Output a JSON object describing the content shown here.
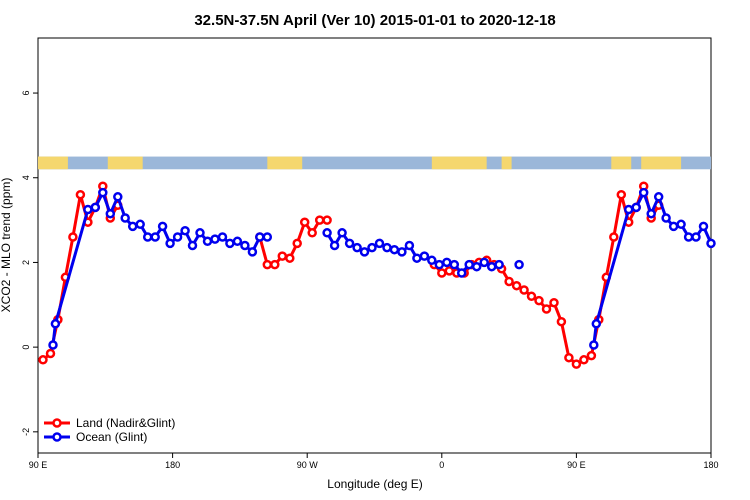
{
  "chart_data": {
    "type": "line",
    "title": "32.5N-37.5N April (Ver 10)   2015-01-01 to 2020-12-18",
    "xlabel": "Longitude (deg E)",
    "ylabel": "XCO2 - MLO trend (ppm)",
    "xlim": [
      0,
      270
    ],
    "ylim": [
      -2.5,
      7.3
    ],
    "x_ticks": [
      {
        "value": 0,
        "label": "90 E"
      },
      {
        "value": 54,
        "label": "180"
      },
      {
        "value": 108,
        "label": "90 W"
      },
      {
        "value": 162,
        "label": "0"
      },
      {
        "value": 216,
        "label": "90 E"
      },
      {
        "value": 270,
        "label": "180"
      }
    ],
    "y_ticks": [
      {
        "value": -2,
        "label": "-2"
      },
      {
        "value": 0,
        "label": "0"
      },
      {
        "value": 2,
        "label": "2"
      },
      {
        "value": 4,
        "label": "4"
      },
      {
        "value": 6,
        "label": "6"
      }
    ],
    "grid": false,
    "legend_position": "bottom-left",
    "land_ocean_strip": {
      "y_range": [
        4.2,
        4.5
      ],
      "land_color": "#f5d76e",
      "ocean_color": "#9bb7d9",
      "land_x_ranges": [
        [
          0,
          12
        ],
        [
          28,
          42
        ],
        [
          92,
          106
        ],
        [
          158,
          180
        ],
        [
          186,
          190
        ],
        [
          230,
          238
        ],
        [
          242,
          258
        ]
      ]
    },
    "series": [
      {
        "name": "Land (Nadir&Glint)",
        "color": "#ff0000",
        "segments": [
          [
            [
              2,
              -0.3
            ],
            [
              5,
              -0.15
            ],
            [
              8,
              0.65
            ],
            [
              11,
              1.65
            ],
            [
              14,
              2.6
            ],
            [
              17,
              3.6
            ],
            [
              20,
              2.95
            ],
            [
              23,
              3.3
            ],
            [
              26,
              3.8
            ],
            [
              29,
              3.05
            ],
            [
              32,
              3.35
            ]
          ],
          [
            [
              89,
              2.6
            ],
            [
              92,
              1.95
            ],
            [
              95,
              1.95
            ],
            [
              98,
              2.15
            ],
            [
              101,
              2.1
            ],
            [
              104,
              2.45
            ],
            [
              107,
              2.95
            ],
            [
              110,
              2.7
            ],
            [
              113,
              3.0
            ],
            [
              116,
              3.0
            ]
          ],
          [
            [
              159,
              1.95
            ],
            [
              162,
              1.75
            ],
            [
              165,
              1.8
            ],
            [
              168,
              1.75
            ],
            [
              171,
              1.75
            ],
            [
              174,
              1.95
            ],
            [
              177,
              2.0
            ],
            [
              180,
              2.05
            ],
            [
              183,
              1.95
            ],
            [
              186,
              1.85
            ],
            [
              189,
              1.55
            ],
            [
              192,
              1.45
            ],
            [
              195,
              1.35
            ],
            [
              198,
              1.2
            ],
            [
              201,
              1.1
            ],
            [
              204,
              0.9
            ],
            [
              207,
              1.05
            ],
            [
              210,
              0.6
            ],
            [
              213,
              -0.25
            ],
            [
              216,
              -0.4
            ],
            [
              219,
              -0.3
            ],
            [
              222,
              -0.2
            ],
            [
              225,
              0.65
            ],
            [
              228,
              1.65
            ],
            [
              231,
              2.6
            ],
            [
              234,
              3.6
            ],
            [
              237,
              2.95
            ],
            [
              240,
              3.3
            ],
            [
              243,
              3.8
            ],
            [
              246,
              3.05
            ],
            [
              249,
              3.35
            ]
          ]
        ]
      },
      {
        "name": "Ocean (Glint)",
        "color": "#0000ee",
        "segments": [
          [
            [
              6,
              0.05
            ],
            [
              7,
              0.55
            ],
            [
              20,
              3.25
            ],
            [
              23,
              3.3
            ],
            [
              26,
              3.65
            ],
            [
              29,
              3.15
            ],
            [
              32,
              3.55
            ],
            [
              35,
              3.05
            ],
            [
              38,
              2.85
            ],
            [
              41,
              2.9
            ],
            [
              44,
              2.6
            ],
            [
              47,
              2.6
            ],
            [
              50,
              2.85
            ],
            [
              53,
              2.45
            ],
            [
              56,
              2.6
            ],
            [
              59,
              2.75
            ],
            [
              62,
              2.4
            ],
            [
              65,
              2.7
            ],
            [
              68,
              2.5
            ],
            [
              71,
              2.55
            ],
            [
              74,
              2.6
            ],
            [
              77,
              2.45
            ],
            [
              80,
              2.5
            ],
            [
              83,
              2.4
            ],
            [
              86,
              2.25
            ],
            [
              89,
              2.6
            ],
            [
              92,
              2.6
            ]
          ],
          [
            [
              116,
              2.7
            ],
            [
              119,
              2.4
            ],
            [
              122,
              2.7
            ],
            [
              125,
              2.45
            ],
            [
              128,
              2.35
            ],
            [
              131,
              2.25
            ],
            [
              134,
              2.35
            ],
            [
              137,
              2.45
            ],
            [
              140,
              2.35
            ],
            [
              143,
              2.3
            ],
            [
              146,
              2.25
            ],
            [
              149,
              2.4
            ],
            [
              152,
              2.1
            ],
            [
              155,
              2.15
            ],
            [
              158,
              2.05
            ],
            [
              161,
              1.95
            ],
            [
              164,
              2.0
            ],
            [
              167,
              1.95
            ],
            [
              170,
              1.75
            ],
            [
              173,
              1.95
            ],
            [
              176,
              1.9
            ],
            [
              179,
              2.0
            ],
            [
              182,
              1.9
            ],
            [
              185,
              1.95
            ]
          ],
          [
            [
              193,
              1.95
            ]
          ],
          [
            [
              223,
              0.05
            ],
            [
              224,
              0.55
            ],
            [
              237,
              3.25
            ],
            [
              240,
              3.3
            ],
            [
              243,
              3.65
            ],
            [
              246,
              3.15
            ],
            [
              249,
              3.55
            ],
            [
              252,
              3.05
            ],
            [
              255,
              2.85
            ],
            [
              258,
              2.9
            ],
            [
              261,
              2.6
            ],
            [
              264,
              2.6
            ],
            [
              267,
              2.85
            ],
            [
              270,
              2.45
            ]
          ]
        ]
      }
    ]
  }
}
